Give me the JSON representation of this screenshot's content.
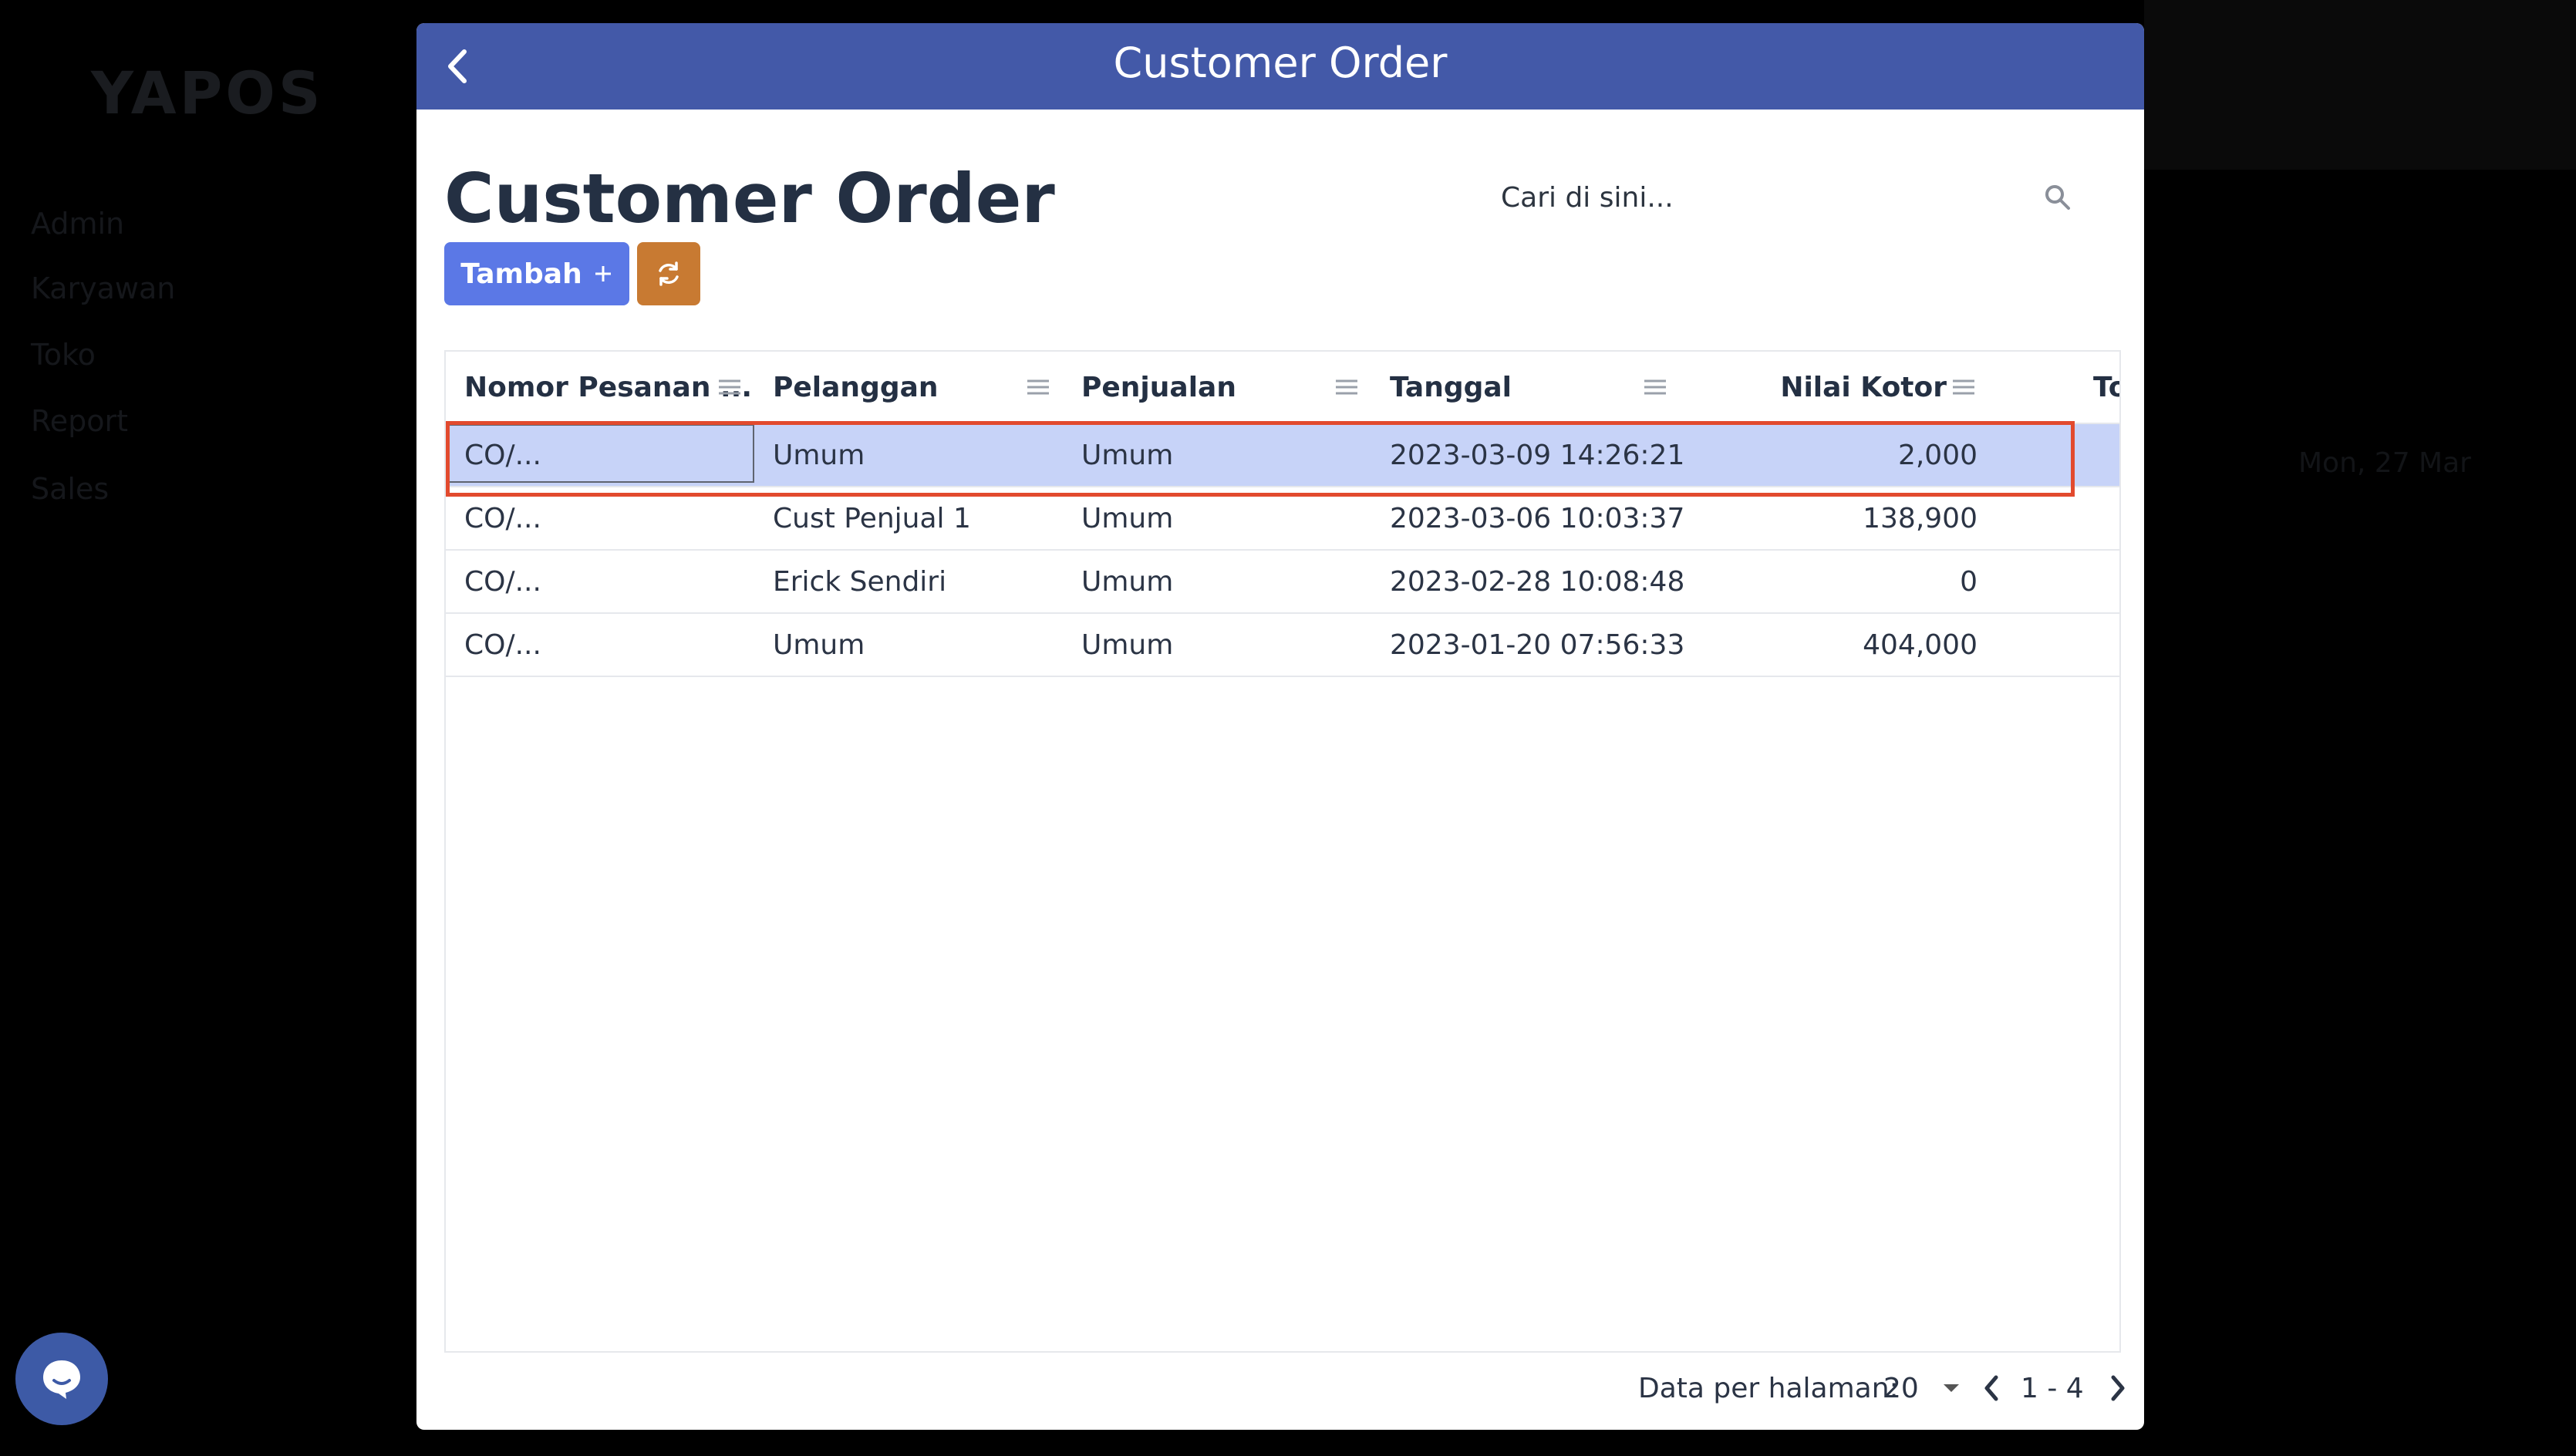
{
  "background": {
    "logo": "YAPOS",
    "nav": [
      "Admin",
      "Karyawan",
      "Toko",
      "Report",
      "Sales"
    ],
    "row_cells": [
      "Mon, 27 Mar"
    ]
  },
  "modal": {
    "header_title": "Customer Order",
    "page_title": "Customer Order",
    "search": {
      "placeholder": "Cari di sini..."
    },
    "add_button": "Tambah",
    "add_icon": "plus",
    "refresh_icon": "refresh-icon",
    "columns": [
      {
        "label": "Nomor Pesanan ...",
        "align": "left"
      },
      {
        "label": "Pelanggan",
        "align": "left"
      },
      {
        "label": "Penjualan",
        "align": "left"
      },
      {
        "label": "Tanggal",
        "align": "left"
      },
      {
        "label": "Nilai Kotor",
        "align": "right"
      },
      {
        "label": "To",
        "align": "left"
      }
    ],
    "rows": [
      {
        "order": "CO/...",
        "customer": "Umum",
        "sales": "Umum",
        "date": "2023-03-09 14:26:21",
        "gross": "2,000",
        "selected": true
      },
      {
        "order": "CO/...",
        "customer": "Cust Penjual 1",
        "sales": "Umum",
        "date": "2023-03-06 10:03:37",
        "gross": "138,900",
        "selected": false
      },
      {
        "order": "CO/...",
        "customer": "Erick Sendiri",
        "sales": "Umum",
        "date": "2023-02-28 10:08:48",
        "gross": "0",
        "selected": false
      },
      {
        "order": "CO/...",
        "customer": "Umum",
        "sales": "Umum",
        "date": "2023-01-20 07:56:33",
        "gross": "404,000",
        "selected": false
      }
    ],
    "pagination": {
      "per_page_label": "Data per halaman:",
      "per_page_value": "20",
      "range": "1 - 4"
    }
  },
  "colors": {
    "header": "#4359a8",
    "add_button": "#5b78e6",
    "refresh_button": "#c87a32",
    "selected_row": "#c7d3f8",
    "highlight": "#e24a2e"
  }
}
